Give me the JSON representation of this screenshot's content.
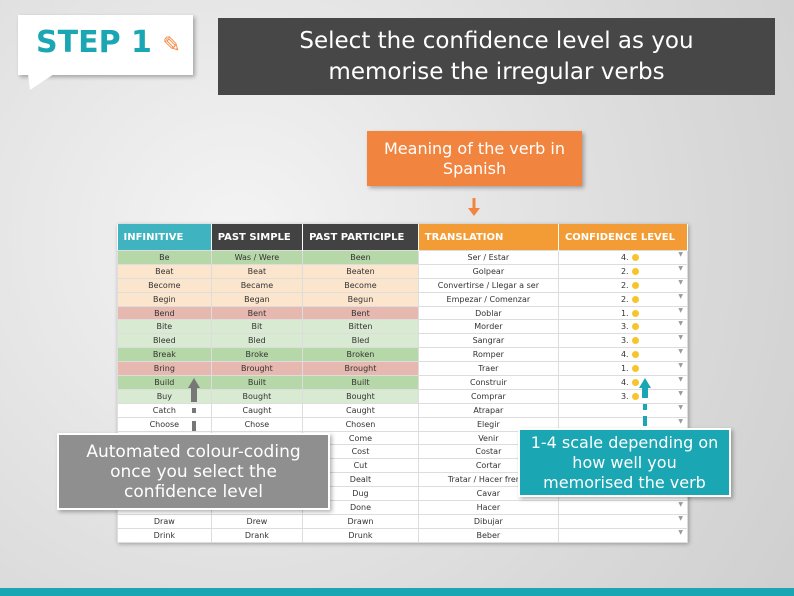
{
  "header": {
    "step": "STEP 1",
    "title": "Select the confidence level as you memorise the irregular verbs"
  },
  "callouts": {
    "translation": "Meaning of the verb in Spanish",
    "colour": "Automated colour-coding once you select the confidence level",
    "scale": "1-4 scale depending on how well you memorised the verb"
  },
  "table": {
    "headers": [
      "INFINITIVE",
      "PAST SIMPLE",
      "PAST PARTICIPLE",
      "TRANSLATION",
      "CONFIDENCE LEVEL"
    ],
    "rows": [
      [
        "Be",
        "Was / Were",
        "Been",
        "Ser / Estar",
        "4."
      ],
      [
        "Beat",
        "Beat",
        "Beaten",
        "Golpear",
        "2."
      ],
      [
        "Become",
        "Became",
        "Become",
        "Convertirse / Llegar a ser",
        "2."
      ],
      [
        "Begin",
        "Began",
        "Begun",
        "Empezar / Comenzar",
        "2."
      ],
      [
        "Bend",
        "Bent",
        "Bent",
        "Doblar",
        "1."
      ],
      [
        "Bite",
        "Bit",
        "Bitten",
        "Morder",
        "3."
      ],
      [
        "Bleed",
        "Bled",
        "Bled",
        "Sangrar",
        "3."
      ],
      [
        "Break",
        "Broke",
        "Broken",
        "Romper",
        "4."
      ],
      [
        "Bring",
        "Brought",
        "Brought",
        "Traer",
        "1."
      ],
      [
        "Build",
        "Built",
        "Built",
        "Construir",
        "4."
      ],
      [
        "Buy",
        "Bought",
        "Bought",
        "Comprar",
        "3."
      ],
      [
        "Catch",
        "Caught",
        "Caught",
        "Atrapar",
        null
      ],
      [
        "Choose",
        "Chose",
        "Chosen",
        "Elegir",
        null
      ],
      [
        null,
        null,
        "Come",
        "Venir",
        null
      ],
      [
        null,
        null,
        "Cost",
        "Costar",
        null
      ],
      [
        null,
        null,
        "Cut",
        "Cortar",
        null
      ],
      [
        null,
        null,
        "Dealt",
        "Tratar / Hacer frente",
        null
      ],
      [
        null,
        null,
        "Dug",
        "Cavar",
        null
      ],
      [
        null,
        null,
        "Done",
        "Hacer",
        null
      ],
      [
        "Draw",
        "Drew",
        "Drawn",
        "Dibujar",
        null
      ],
      [
        "Drink",
        "Drank",
        "Drunk",
        "Beber",
        null
      ]
    ]
  }
}
